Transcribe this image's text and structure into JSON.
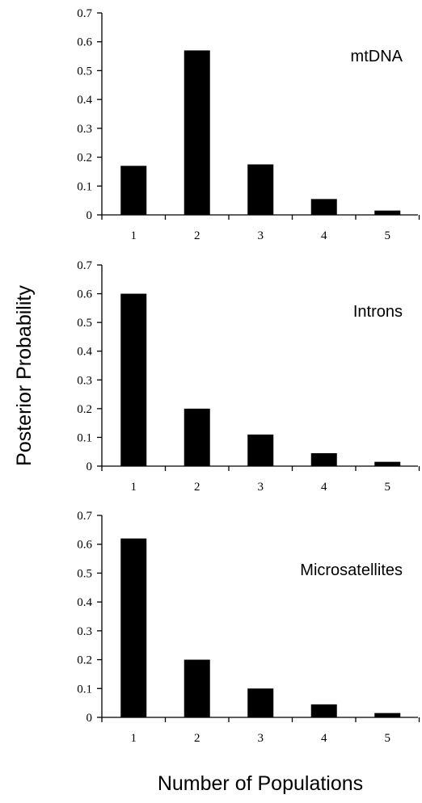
{
  "ylabel": "Posterior Probability",
  "xlabel": "Number of Populations",
  "chart_data": [
    {
      "type": "bar",
      "title": "mtDNA",
      "categories": [
        "1",
        "2",
        "3",
        "4",
        "5"
      ],
      "values": [
        0.17,
        0.57,
        0.175,
        0.055,
        0.015
      ],
      "ylim": [
        0,
        0.7
      ],
      "yticks": [
        "0",
        "0.1",
        "0.2",
        "0.3",
        "0.4",
        "0.5",
        "0.6",
        "0.7"
      ],
      "grid": false,
      "color": "#000000"
    },
    {
      "type": "bar",
      "title": "Introns",
      "categories": [
        "1",
        "2",
        "3",
        "4",
        "5"
      ],
      "values": [
        0.6,
        0.2,
        0.11,
        0.045,
        0.015
      ],
      "ylim": [
        0,
        0.7
      ],
      "yticks": [
        "0",
        "0.1",
        "0.2",
        "0.3",
        "0.4",
        "0.5",
        "0.6",
        "0.7"
      ],
      "grid": false,
      "color": "#000000"
    },
    {
      "type": "bar",
      "title": "Microsatellites",
      "categories": [
        "1",
        "2",
        "3",
        "4",
        "5"
      ],
      "values": [
        0.62,
        0.2,
        0.1,
        0.045,
        0.015
      ],
      "ylim": [
        0,
        0.7
      ],
      "yticks": [
        "0",
        "0.1",
        "0.2",
        "0.3",
        "0.4",
        "0.5",
        "0.6",
        "0.7"
      ],
      "grid": false,
      "color": "#000000"
    }
  ]
}
